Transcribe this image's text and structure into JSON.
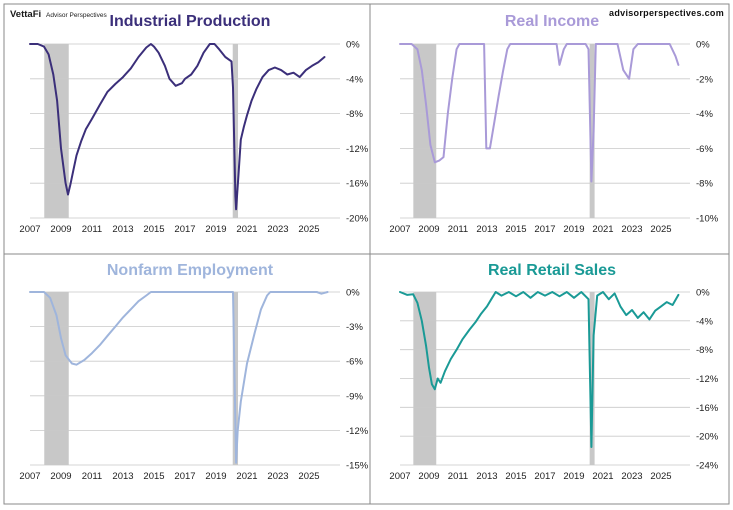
{
  "header": {
    "logo_main": "VettaFi",
    "logo_sub": "Advisor Perspectives",
    "website": "advisorperspectives.com"
  },
  "chart_data": [
    {
      "type": "line",
      "title": "Industrial Production",
      "color": "#3b2f7a",
      "y_ticks": [
        "0%",
        "-4%",
        "-8%",
        "-12%",
        "-16%",
        "-20%"
      ],
      "ylim": [
        -20,
        0
      ],
      "x_ticks": [
        "2007",
        "2009",
        "2011",
        "2013",
        "2015",
        "2017",
        "2019",
        "2021",
        "2023",
        "2025"
      ],
      "xlim": [
        2007.0,
        2027.0
      ],
      "recessions": [
        [
          2007.92,
          2009.5
        ],
        [
          2020.08,
          2020.42
        ]
      ],
      "grid": true,
      "series": [
        {
          "points": [
            [
              2007.0,
              0
            ],
            [
              2007.5,
              0
            ],
            [
              2007.9,
              -0.3
            ],
            [
              2008.2,
              -1.2
            ],
            [
              2008.5,
              -3.5
            ],
            [
              2008.75,
              -6.5
            ],
            [
              2009.0,
              -12.0
            ],
            [
              2009.3,
              -16.0
            ],
            [
              2009.45,
              -17.3
            ],
            [
              2009.6,
              -16.2
            ],
            [
              2009.8,
              -14.5
            ],
            [
              2010.0,
              -12.8
            ],
            [
              2010.3,
              -11.2
            ],
            [
              2010.6,
              -9.8
            ],
            [
              2011.0,
              -8.6
            ],
            [
              2011.5,
              -7.0
            ],
            [
              2012.0,
              -5.5
            ],
            [
              2012.5,
              -4.6
            ],
            [
              2013.0,
              -3.8
            ],
            [
              2013.5,
              -2.8
            ],
            [
              2014.0,
              -1.5
            ],
            [
              2014.5,
              -0.4
            ],
            [
              2014.8,
              0
            ],
            [
              2015.0,
              -0.3
            ],
            [
              2015.3,
              -1.0
            ],
            [
              2015.7,
              -2.5
            ],
            [
              2016.0,
              -4.0
            ],
            [
              2016.4,
              -4.8
            ],
            [
              2016.8,
              -4.5
            ],
            [
              2017.0,
              -4.0
            ],
            [
              2017.4,
              -3.5
            ],
            [
              2017.8,
              -2.5
            ],
            [
              2018.2,
              -1.0
            ],
            [
              2018.6,
              0
            ],
            [
              2018.9,
              0
            ],
            [
              2019.2,
              -0.6
            ],
            [
              2019.6,
              -1.5
            ],
            [
              2020.0,
              -2.0
            ],
            [
              2020.1,
              -5.0
            ],
            [
              2020.25,
              -17.5
            ],
            [
              2020.3,
              -19.0
            ],
            [
              2020.45,
              -15.0
            ],
            [
              2020.6,
              -11.0
            ],
            [
              2020.8,
              -9.5
            ],
            [
              2021.0,
              -8.2
            ],
            [
              2021.3,
              -6.5
            ],
            [
              2021.6,
              -5.2
            ],
            [
              2022.0,
              -3.8
            ],
            [
              2022.4,
              -3.0
            ],
            [
              2022.8,
              -2.7
            ],
            [
              2023.2,
              -3.0
            ],
            [
              2023.6,
              -3.5
            ],
            [
              2024.0,
              -3.3
            ],
            [
              2024.4,
              -3.8
            ],
            [
              2024.8,
              -3.0
            ],
            [
              2025.2,
              -2.5
            ],
            [
              2025.6,
              -2.1
            ],
            [
              2026.0,
              -1.5
            ]
          ]
        }
      ]
    },
    {
      "type": "line",
      "title": "Real Income",
      "color": "#a99ad8",
      "y_ticks": [
        "0%",
        "-2%",
        "-4%",
        "-6%",
        "-8%",
        "-10%"
      ],
      "ylim": [
        -10,
        0
      ],
      "x_ticks": [
        "2007",
        "2009",
        "2011",
        "2013",
        "2015",
        "2017",
        "2019",
        "2021",
        "2023",
        "2025"
      ],
      "xlim": [
        2007.0,
        2027.0
      ],
      "recessions": [
        [
          2007.92,
          2009.5
        ],
        [
          2020.08,
          2020.42
        ]
      ],
      "grid": true,
      "series": [
        {
          "points": [
            [
              2007.0,
              0
            ],
            [
              2007.8,
              0
            ],
            [
              2008.2,
              -0.3
            ],
            [
              2008.5,
              -1.5
            ],
            [
              2008.8,
              -3.5
            ],
            [
              2009.1,
              -5.8
            ],
            [
              2009.4,
              -6.8
            ],
            [
              2009.7,
              -6.7
            ],
            [
              2010.0,
              -6.5
            ],
            [
              2010.3,
              -4.0
            ],
            [
              2010.6,
              -2.0
            ],
            [
              2010.9,
              -0.3
            ],
            [
              2011.1,
              0
            ],
            [
              2012.8,
              0
            ],
            [
              2012.95,
              -6.0
            ],
            [
              2013.2,
              -6.0
            ],
            [
              2013.5,
              -4.5
            ],
            [
              2013.8,
              -3.0
            ],
            [
              2014.1,
              -1.6
            ],
            [
              2014.4,
              -0.3
            ],
            [
              2014.6,
              0
            ],
            [
              2017.8,
              0
            ],
            [
              2018.0,
              -1.2
            ],
            [
              2018.3,
              -0.3
            ],
            [
              2018.5,
              0
            ],
            [
              2019.8,
              0
            ],
            [
              2020.0,
              -0.3
            ],
            [
              2020.2,
              -7.9
            ],
            [
              2020.35,
              -5.0
            ],
            [
              2020.5,
              0
            ],
            [
              2022.0,
              0
            ],
            [
              2022.4,
              -1.5
            ],
            [
              2022.8,
              -2.0
            ],
            [
              2023.1,
              -0.3
            ],
            [
              2023.4,
              0
            ],
            [
              2025.6,
              0
            ],
            [
              2026.0,
              -0.7
            ],
            [
              2026.2,
              -1.2
            ]
          ]
        }
      ]
    },
    {
      "type": "line",
      "title": "Nonfarm Employment",
      "color": "#9fb5dc",
      "y_ticks": [
        "0%",
        "-3%",
        "-6%",
        "-9%",
        "-12%",
        "-15%"
      ],
      "ylim": [
        -15,
        0
      ],
      "x_ticks": [
        "2007",
        "2009",
        "2011",
        "2013",
        "2015",
        "2017",
        "2019",
        "2021",
        "2023",
        "2025"
      ],
      "xlim": [
        2007.0,
        2027.0
      ],
      "recessions": [
        [
          2007.92,
          2009.5
        ],
        [
          2020.08,
          2020.42
        ]
      ],
      "grid": true,
      "series": [
        {
          "points": [
            [
              2007.0,
              0
            ],
            [
              2007.9,
              0
            ],
            [
              2008.3,
              -0.5
            ],
            [
              2008.7,
              -2.0
            ],
            [
              2009.0,
              -4.0
            ],
            [
              2009.3,
              -5.5
            ],
            [
              2009.7,
              -6.2
            ],
            [
              2010.0,
              -6.3
            ],
            [
              2010.5,
              -5.9
            ],
            [
              2011.0,
              -5.3
            ],
            [
              2011.5,
              -4.6
            ],
            [
              2012.0,
              -3.8
            ],
            [
              2012.5,
              -3.0
            ],
            [
              2013.0,
              -2.2
            ],
            [
              2013.5,
              -1.5
            ],
            [
              2014.0,
              -0.8
            ],
            [
              2014.5,
              -0.3
            ],
            [
              2014.8,
              0
            ],
            [
              2020.1,
              0
            ],
            [
              2020.3,
              -14.8
            ],
            [
              2020.4,
              -12.0
            ],
            [
              2020.6,
              -9.5
            ],
            [
              2021.0,
              -6.2
            ],
            [
              2021.5,
              -3.5
            ],
            [
              2021.9,
              -1.5
            ],
            [
              2022.3,
              -0.3
            ],
            [
              2022.5,
              0
            ],
            [
              2025.5,
              0
            ],
            [
              2025.8,
              -0.15
            ],
            [
              2026.2,
              0
            ]
          ]
        }
      ]
    },
    {
      "type": "line",
      "title": "Real Retail Sales",
      "color": "#1a9a96",
      "y_ticks": [
        "0%",
        "-4%",
        "-8%",
        "-12%",
        "-16%",
        "-20%",
        "-24%"
      ],
      "ylim": [
        -24,
        0
      ],
      "x_ticks": [
        "2007",
        "2009",
        "2011",
        "2013",
        "2015",
        "2017",
        "2019",
        "2021",
        "2023",
        "2025"
      ],
      "xlim": [
        2007.0,
        2027.0
      ],
      "recessions": [
        [
          2007.92,
          2009.5
        ],
        [
          2020.08,
          2020.42
        ]
      ],
      "grid": true,
      "series": [
        {
          "points": [
            [
              2007.0,
              0
            ],
            [
              2007.5,
              -0.4
            ],
            [
              2007.9,
              -0.3
            ],
            [
              2008.2,
              -1.5
            ],
            [
              2008.5,
              -4.0
            ],
            [
              2008.8,
              -7.5
            ],
            [
              2009.0,
              -10.5
            ],
            [
              2009.2,
              -12.8
            ],
            [
              2009.4,
              -13.5
            ],
            [
              2009.6,
              -12.0
            ],
            [
              2009.8,
              -12.6
            ],
            [
              2010.1,
              -11.0
            ],
            [
              2010.5,
              -9.3
            ],
            [
              2010.9,
              -8.0
            ],
            [
              2011.3,
              -6.6
            ],
            [
              2011.8,
              -5.2
            ],
            [
              2012.2,
              -4.2
            ],
            [
              2012.6,
              -3.0
            ],
            [
              2013.0,
              -2.0
            ],
            [
              2013.3,
              -1.0
            ],
            [
              2013.6,
              0
            ],
            [
              2014.0,
              -0.5
            ],
            [
              2014.5,
              0
            ],
            [
              2015.0,
              -0.6
            ],
            [
              2015.5,
              0
            ],
            [
              2016.0,
              -0.8
            ],
            [
              2016.5,
              0
            ],
            [
              2017.0,
              -0.5
            ],
            [
              2017.5,
              0
            ],
            [
              2018.0,
              -0.6
            ],
            [
              2018.5,
              0
            ],
            [
              2019.0,
              -0.8
            ],
            [
              2019.5,
              0
            ],
            [
              2020.0,
              -1.0
            ],
            [
              2020.2,
              -21.5
            ],
            [
              2020.35,
              -6.0
            ],
            [
              2020.6,
              -0.5
            ],
            [
              2021.0,
              0
            ],
            [
              2021.4,
              -1.0
            ],
            [
              2021.8,
              -0.2
            ],
            [
              2022.2,
              -2.0
            ],
            [
              2022.6,
              -3.2
            ],
            [
              2023.0,
              -2.5
            ],
            [
              2023.4,
              -3.6
            ],
            [
              2023.8,
              -2.8
            ],
            [
              2024.2,
              -3.8
            ],
            [
              2024.6,
              -2.6
            ],
            [
              2025.0,
              -2.0
            ],
            [
              2025.4,
              -1.4
            ],
            [
              2025.8,
              -1.8
            ],
            [
              2026.2,
              -0.4
            ]
          ]
        }
      ]
    }
  ]
}
